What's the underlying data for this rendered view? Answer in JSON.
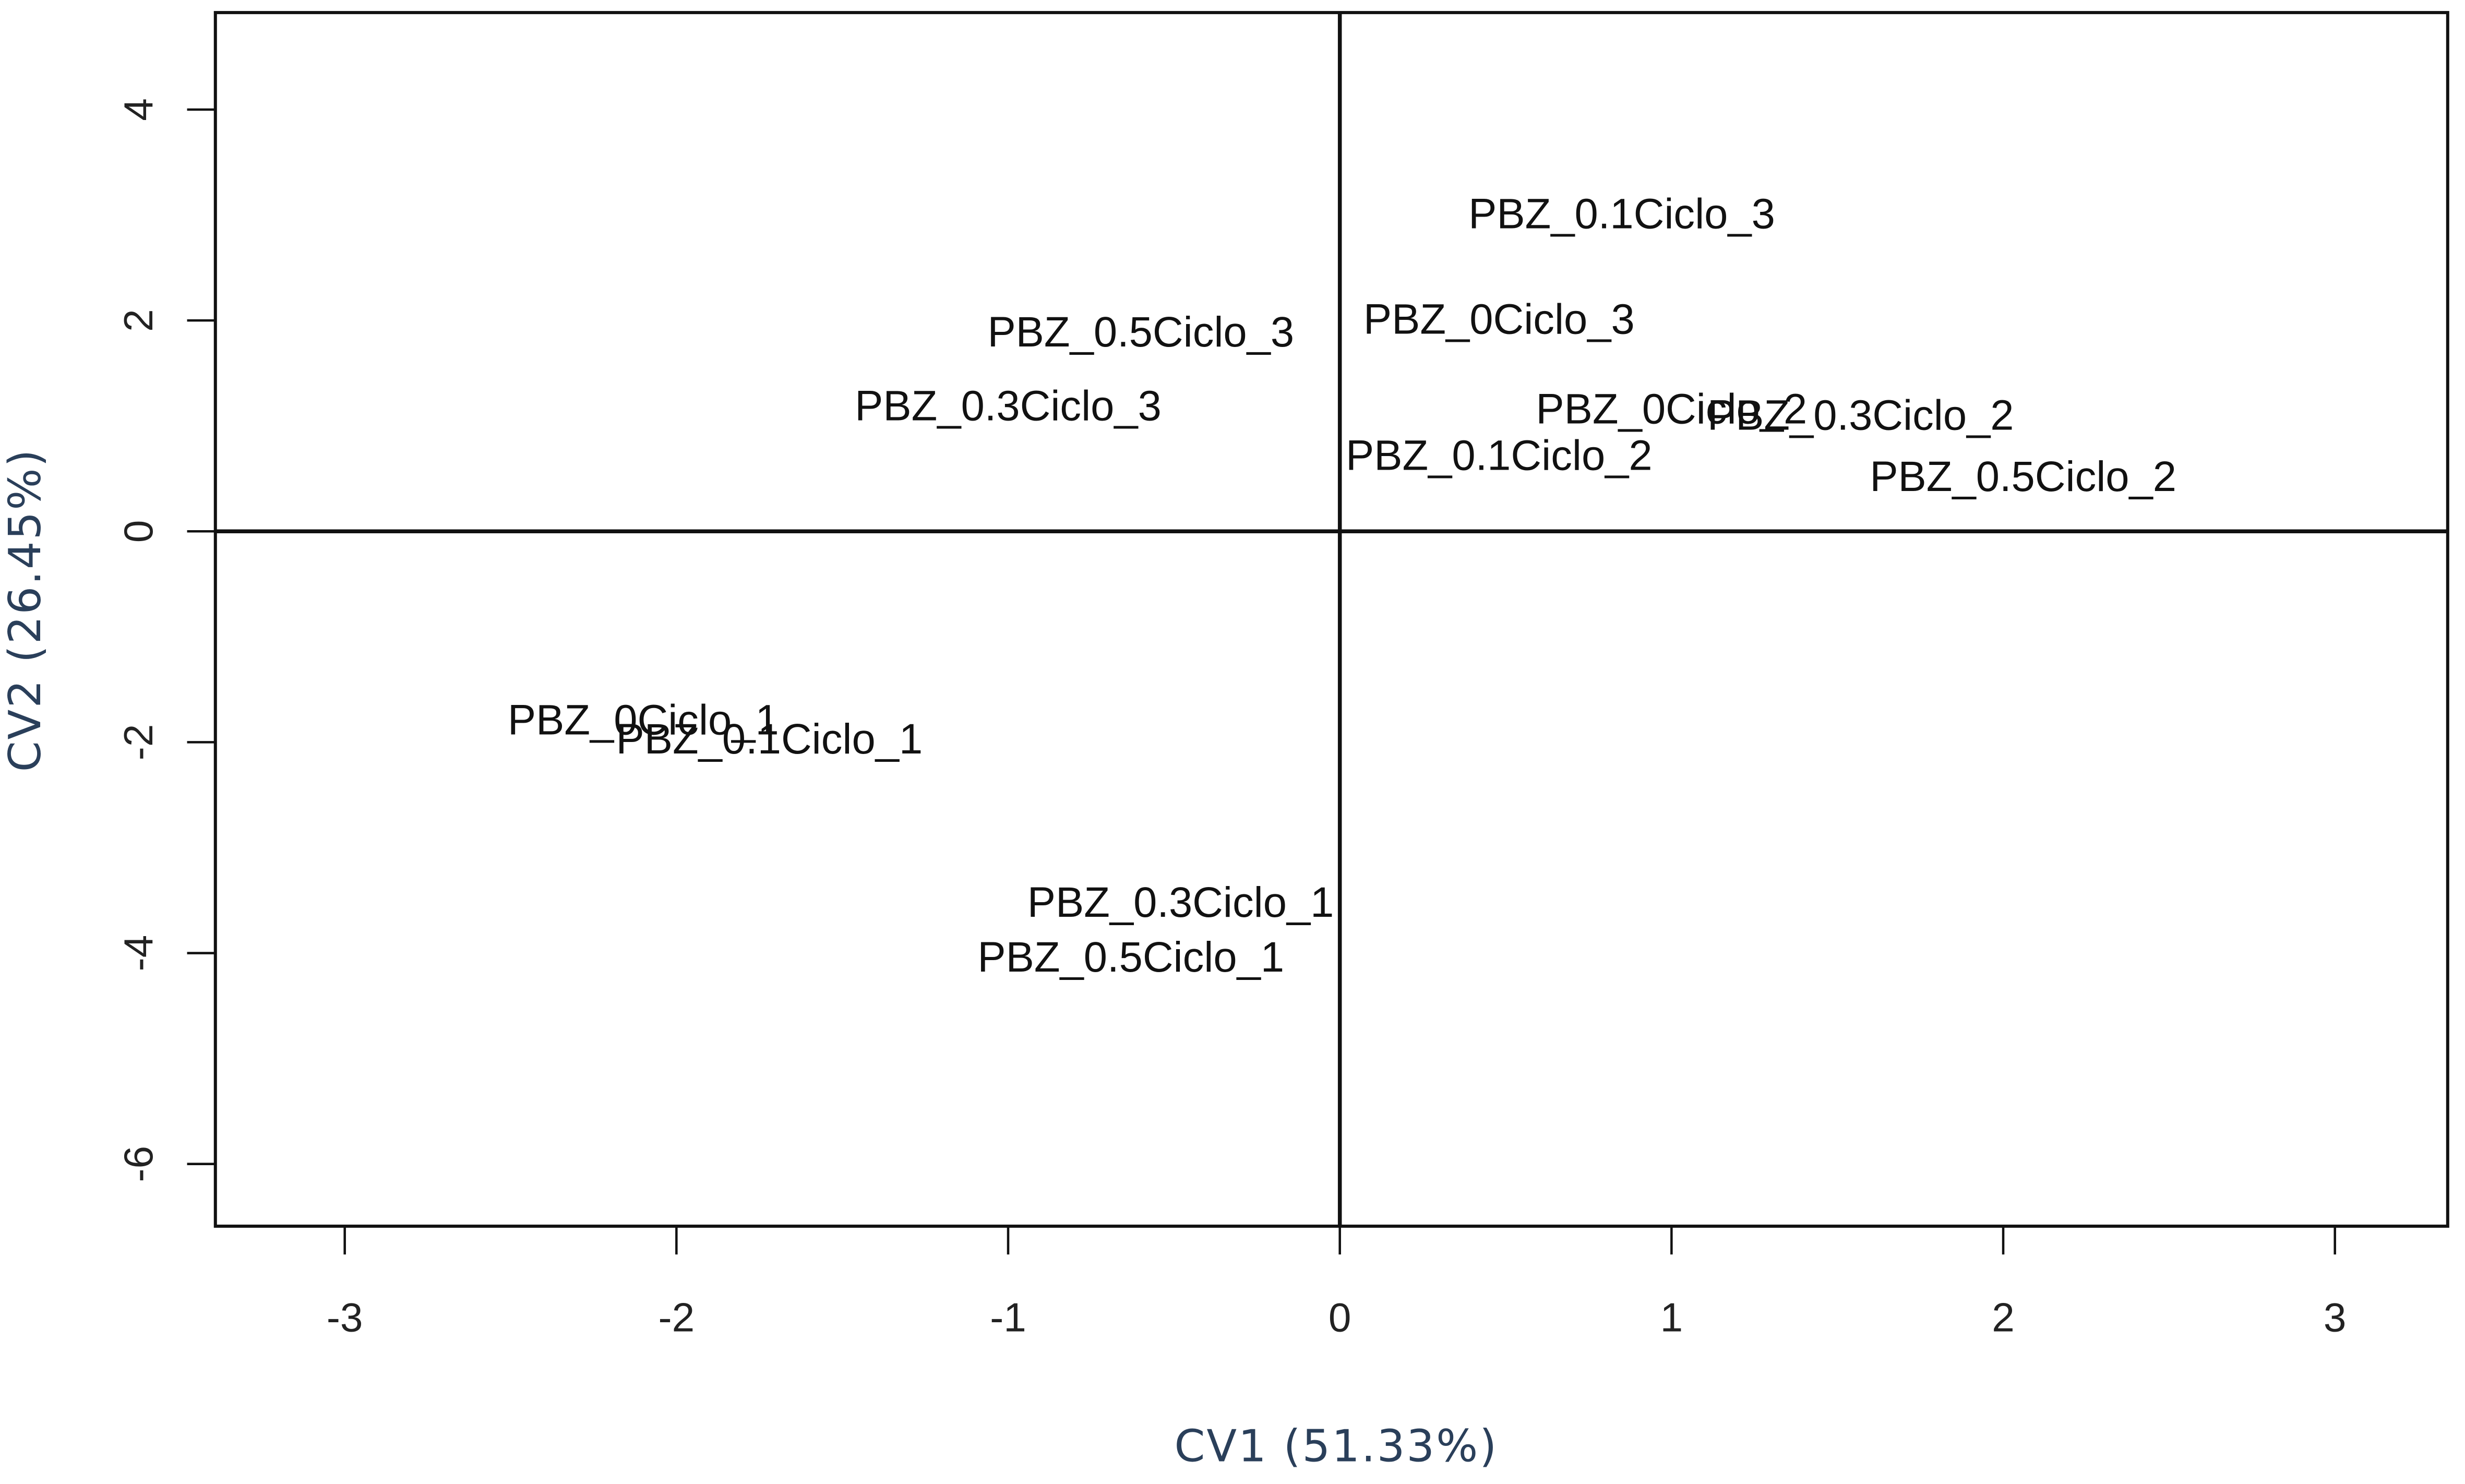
{
  "chart_data": {
    "type": "scatter",
    "x_label": "CV1 (51.33%)",
    "y_label": "CV2 (26.45%)",
    "labels": [
      "PBZ_0.1Ciclo_3",
      "PBZ_0Ciclo_3",
      "PBZ_0.5Ciclo_3",
      "PBZ_0.3Ciclo_3",
      "PBZ_0Ciclo_2",
      "PBZ_0.3Ciclo_2",
      "PBZ_0.1Ciclo_2",
      "PBZ_0.5Ciclo_2",
      "PBZ_0Ciclo_1",
      "PBZ_0.1Ciclo_1",
      "PBZ_0.3Ciclo_1",
      "PBZ_0.5Ciclo_1"
    ],
    "x": [
      0.85,
      0.48,
      -0.6,
      -1.0,
      1.0,
      1.57,
      0.48,
      2.06,
      -2.1,
      -1.72,
      -0.48,
      -0.63
    ],
    "values": [
      2.98,
      1.98,
      1.86,
      1.16,
      1.13,
      1.07,
      0.69,
      0.49,
      -1.82,
      -2.0,
      -3.55,
      -4.07
    ],
    "color": "#111111",
    "xlim": [
      -3.39,
      3.34
    ],
    "ylim": [
      -6.59,
      4.92
    ],
    "xticks": [
      -3,
      -2,
      -1,
      0,
      1,
      2,
      3
    ],
    "yticks": [
      -6,
      -4,
      -2,
      0,
      2,
      4
    ],
    "hlines": [
      0
    ],
    "vlines": [
      0
    ]
  }
}
